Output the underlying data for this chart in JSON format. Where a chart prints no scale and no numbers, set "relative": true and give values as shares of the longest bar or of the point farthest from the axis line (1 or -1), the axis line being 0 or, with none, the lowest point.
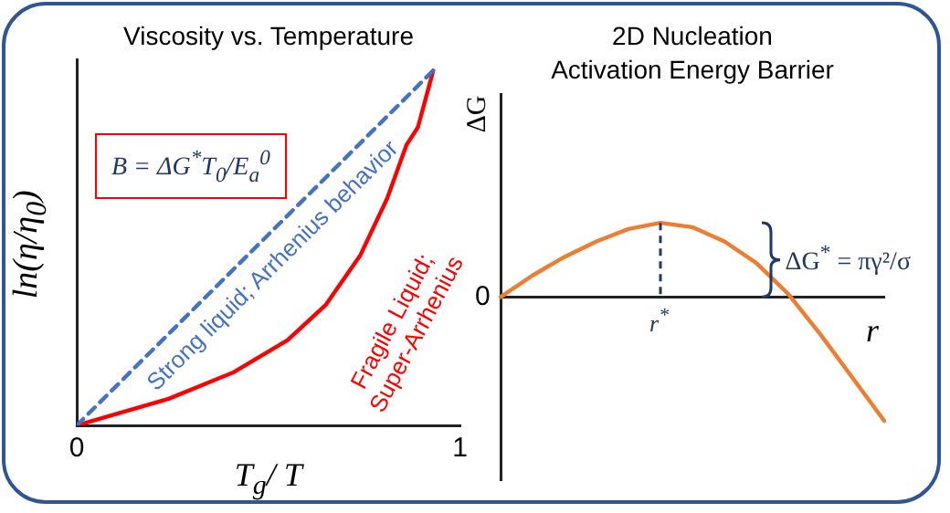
{
  "chart_data": [
    {
      "type": "line",
      "title": "Viscosity vs. Temperature",
      "xlabel": "T$_{g}$/ T",
      "ylabel": "ln(η/η$_{0}$)",
      "relative": true,
      "xlim": [
        0,
        1
      ],
      "xticks": [
        0,
        1
      ],
      "tick_labels": "x",
      "annotations": [
        "B = ΔG$^{*}$T$_{0}$/E$_{a}$$^{0}$"
      ],
      "series": [
        {
          "name": "Strong liquid; Arrhenius behavior",
          "color": "#4472c4",
          "line_style": "dashed",
          "x": [
            0,
            0.93
          ],
          "values": [
            0,
            1
          ]
        },
        {
          "name": "Fragile Liquid; Super-Arrhenius",
          "color": "#ff0000",
          "line_style": "solid",
          "x": [
            0,
            0.24,
            0.41,
            0.55,
            0.65,
            0.74,
            0.81,
            0.86,
            0.89,
            0.92,
            0.93
          ],
          "values": [
            0,
            0.075,
            0.15,
            0.24,
            0.34,
            0.48,
            0.64,
            0.79,
            0.84,
            0.96,
            1
          ]
        }
      ]
    },
    {
      "type": "line",
      "title": "2D Nucleation",
      "subtitle": "Activation Energy Barrier",
      "xlabel": "r",
      "ylabel": "ΔG",
      "relative": true,
      "tick_labels": false,
      "categories": [
        null,
        null,
        null,
        null,
        null,
        null,
        null,
        null,
        null,
        null,
        null,
        null,
        null
      ],
      "annotations": [
        "0",
        "r$^{*}$",
        "ΔG$^{*}$ = πγ²/σ"
      ],
      "series": [
        {
          "color": "#ed7d31",
          "line_style": "solid",
          "values": [
            0,
            0.175,
            0.325,
            0.45,
            0.55,
            0.6,
            0.565,
            0.45,
            0.275,
            0.025,
            -0.3,
            -0.65,
            -1
          ]
        }
      ]
    }
  ]
}
